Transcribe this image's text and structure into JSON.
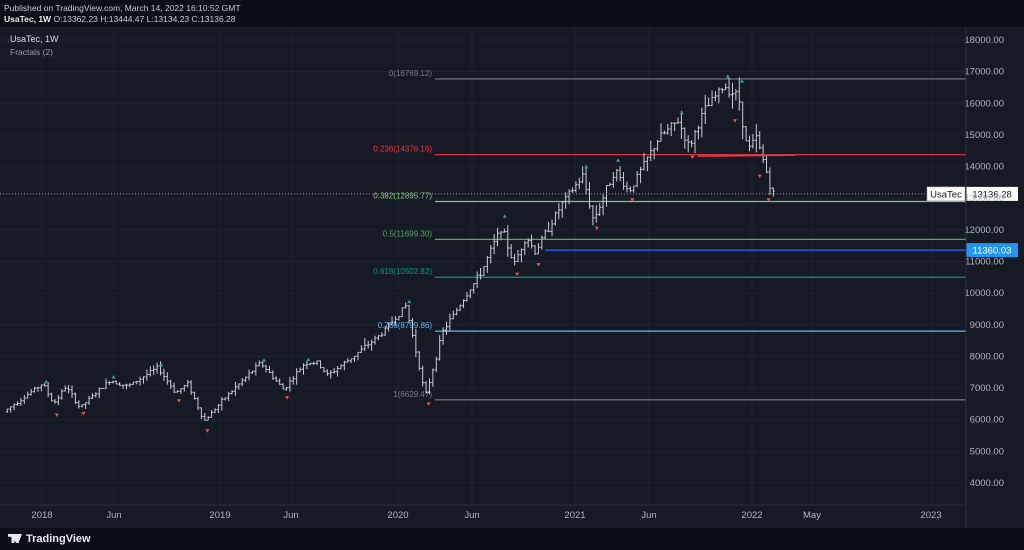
{
  "header": {
    "published": "Published on TradingView.com, March 14, 2022 16:10:52 GMT",
    "symbol": "UsaTec, 1W",
    "ohlc": {
      "o_label": "O:",
      "o": "13362.23",
      "h_label": "H:",
      "h": "13444.47",
      "l_label": "L:",
      "l": "13134.23",
      "c_label": "C:",
      "c": "13136.28"
    }
  },
  "legend": {
    "symbol": "UsaTec, 1W",
    "indicator": "Fractals (2)"
  },
  "footer": {
    "brand": "TradingView"
  },
  "colors": {
    "background": "#161a25",
    "bar": "#c9ccd4",
    "fractal_up": "#26a69a",
    "fractal_down": "#ef5350",
    "fib_0": "#787b86",
    "fib_0236": "#f23645",
    "fib_0382": "#81c784",
    "fib_05": "#4caf50",
    "fib_0618": "#089981",
    "fib_0786": "#64b5f6",
    "fib_1": "#787b86",
    "alert_line": "#2962ff",
    "price_tag_bg": "#ffffff",
    "alert_tag_bg": "#2196f3"
  },
  "chart_data": {
    "type": "bar",
    "interval": "1W",
    "x_axis_labels": [
      "2018",
      "Jun",
      "2019",
      "Jun",
      "2020",
      "Jun",
      "2021",
      "Jun",
      "2022",
      "May",
      "2023"
    ],
    "y_axis_ticks": [
      "4000.00",
      "5000.00",
      "6000.00",
      "7000.00",
      "8000.00",
      "9000.00",
      "10000.00",
      "11000.00",
      "12000.00",
      "13000.00",
      "14000.00",
      "15000.00",
      "16000.00",
      "17000.00",
      "18000.00"
    ],
    "ylim": [
      3500,
      18500
    ],
    "price_anchors": [
      {
        "t": 2017.85,
        "v": 6250
      },
      {
        "t": 2018.07,
        "v": 7150
      },
      {
        "t": 2018.13,
        "v": 6500
      },
      {
        "t": 2018.2,
        "v": 7050
      },
      {
        "t": 2018.28,
        "v": 6380
      },
      {
        "t": 2018.45,
        "v": 7250
      },
      {
        "t": 2018.55,
        "v": 7050
      },
      {
        "t": 2018.72,
        "v": 7650
      },
      {
        "t": 2018.82,
        "v": 6850
      },
      {
        "t": 2018.89,
        "v": 7150
      },
      {
        "t": 2018.98,
        "v": 5950
      },
      {
        "t": 2019.1,
        "v": 6700
      },
      {
        "t": 2019.3,
        "v": 7800
      },
      {
        "t": 2019.43,
        "v": 6950
      },
      {
        "t": 2019.55,
        "v": 7800
      },
      {
        "t": 2019.62,
        "v": 7800
      },
      {
        "t": 2019.68,
        "v": 7400
      },
      {
        "t": 2019.8,
        "v": 7900
      },
      {
        "t": 2019.98,
        "v": 8700
      },
      {
        "t": 2020.12,
        "v": 9600
      },
      {
        "t": 2020.2,
        "v": 7600
      },
      {
        "t": 2020.23,
        "v": 6700
      },
      {
        "t": 2020.33,
        "v": 8800
      },
      {
        "t": 2020.55,
        "v": 10700
      },
      {
        "t": 2020.66,
        "v": 12100
      },
      {
        "t": 2020.73,
        "v": 10900
      },
      {
        "t": 2020.8,
        "v": 11800
      },
      {
        "t": 2020.85,
        "v": 11300
      },
      {
        "t": 2021.0,
        "v": 12800
      },
      {
        "t": 2021.12,
        "v": 13700
      },
      {
        "t": 2021.18,
        "v": 12300
      },
      {
        "t": 2021.3,
        "v": 13900
      },
      {
        "t": 2021.38,
        "v": 13200
      },
      {
        "t": 2021.47,
        "v": 14100
      },
      {
        "t": 2021.55,
        "v": 14900
      },
      {
        "t": 2021.66,
        "v": 15450
      },
      {
        "t": 2021.72,
        "v": 14600
      },
      {
        "t": 2021.8,
        "v": 15700
      },
      {
        "t": 2021.88,
        "v": 16300
      },
      {
        "t": 2021.92,
        "v": 16550
      },
      {
        "t": 2022.0,
        "v": 16200
      },
      {
        "t": 2022.05,
        "v": 14500
      },
      {
        "t": 2022.1,
        "v": 14900
      },
      {
        "t": 2022.15,
        "v": 14000
      },
      {
        "t": 2022.19,
        "v": 13136
      }
    ],
    "fractals_up": [
      {
        "t": 2018.07,
        "v": 7200
      },
      {
        "t": 2018.45,
        "v": 7350
      },
      {
        "t": 2018.72,
        "v": 7730
      },
      {
        "t": 2019.3,
        "v": 7880
      },
      {
        "t": 2019.55,
        "v": 7900
      },
      {
        "t": 2020.12,
        "v": 9730
      },
      {
        "t": 2020.66,
        "v": 12430
      },
      {
        "t": 2021.12,
        "v": 13990
      },
      {
        "t": 2021.3,
        "v": 14200
      },
      {
        "t": 2021.66,
        "v": 15700
      },
      {
        "t": 2021.92,
        "v": 16850
      },
      {
        "t": 2022.0,
        "v": 16700
      }
    ],
    "fractals_down": [
      {
        "t": 2018.13,
        "v": 6150
      },
      {
        "t": 2018.28,
        "v": 6200
      },
      {
        "t": 2018.82,
        "v": 6600
      },
      {
        "t": 2018.98,
        "v": 5650
      },
      {
        "t": 2019.43,
        "v": 6700
      },
      {
        "t": 2020.23,
        "v": 6500
      },
      {
        "t": 2020.73,
        "v": 10600
      },
      {
        "t": 2020.85,
        "v": 10900
      },
      {
        "t": 2021.18,
        "v": 12050
      },
      {
        "t": 2021.38,
        "v": 12950
      },
      {
        "t": 2021.72,
        "v": 14300
      },
      {
        "t": 2021.96,
        "v": 15450
      },
      {
        "t": 2022.1,
        "v": 13700
      },
      {
        "t": 2022.15,
        "v": 12950
      }
    ],
    "fib_levels": [
      {
        "label": "0(16769.12)",
        "value": 16769.12,
        "color": "#787b86"
      },
      {
        "label": "0.236(14376.16)",
        "value": 14376.16,
        "color": "#f23645"
      },
      {
        "label": "0.382(12895.77)",
        "value": 12895.77,
        "color": "#81c784"
      },
      {
        "label": "0.5(11699.30)",
        "value": 11699.3,
        "color": "#4caf50"
      },
      {
        "label": "0.618(10502.82)",
        "value": 10502.82,
        "color": "#089981"
      },
      {
        "label": "0.786(8799.86)",
        "value": 8799.86,
        "color": "#64b5f6"
      },
      {
        "label": "1(6629.47)",
        "value": 6629.47,
        "color": "#787b86"
      }
    ],
    "trendline": {
      "t1": 2021.75,
      "v1": 14330,
      "t2": 2022.3,
      "v2": 14360
    },
    "current_price": {
      "label": "UsaTec",
      "value": "13136.28",
      "v": 13136.28
    },
    "alert_level": {
      "value": "11360.03",
      "v": 11360.03
    }
  }
}
